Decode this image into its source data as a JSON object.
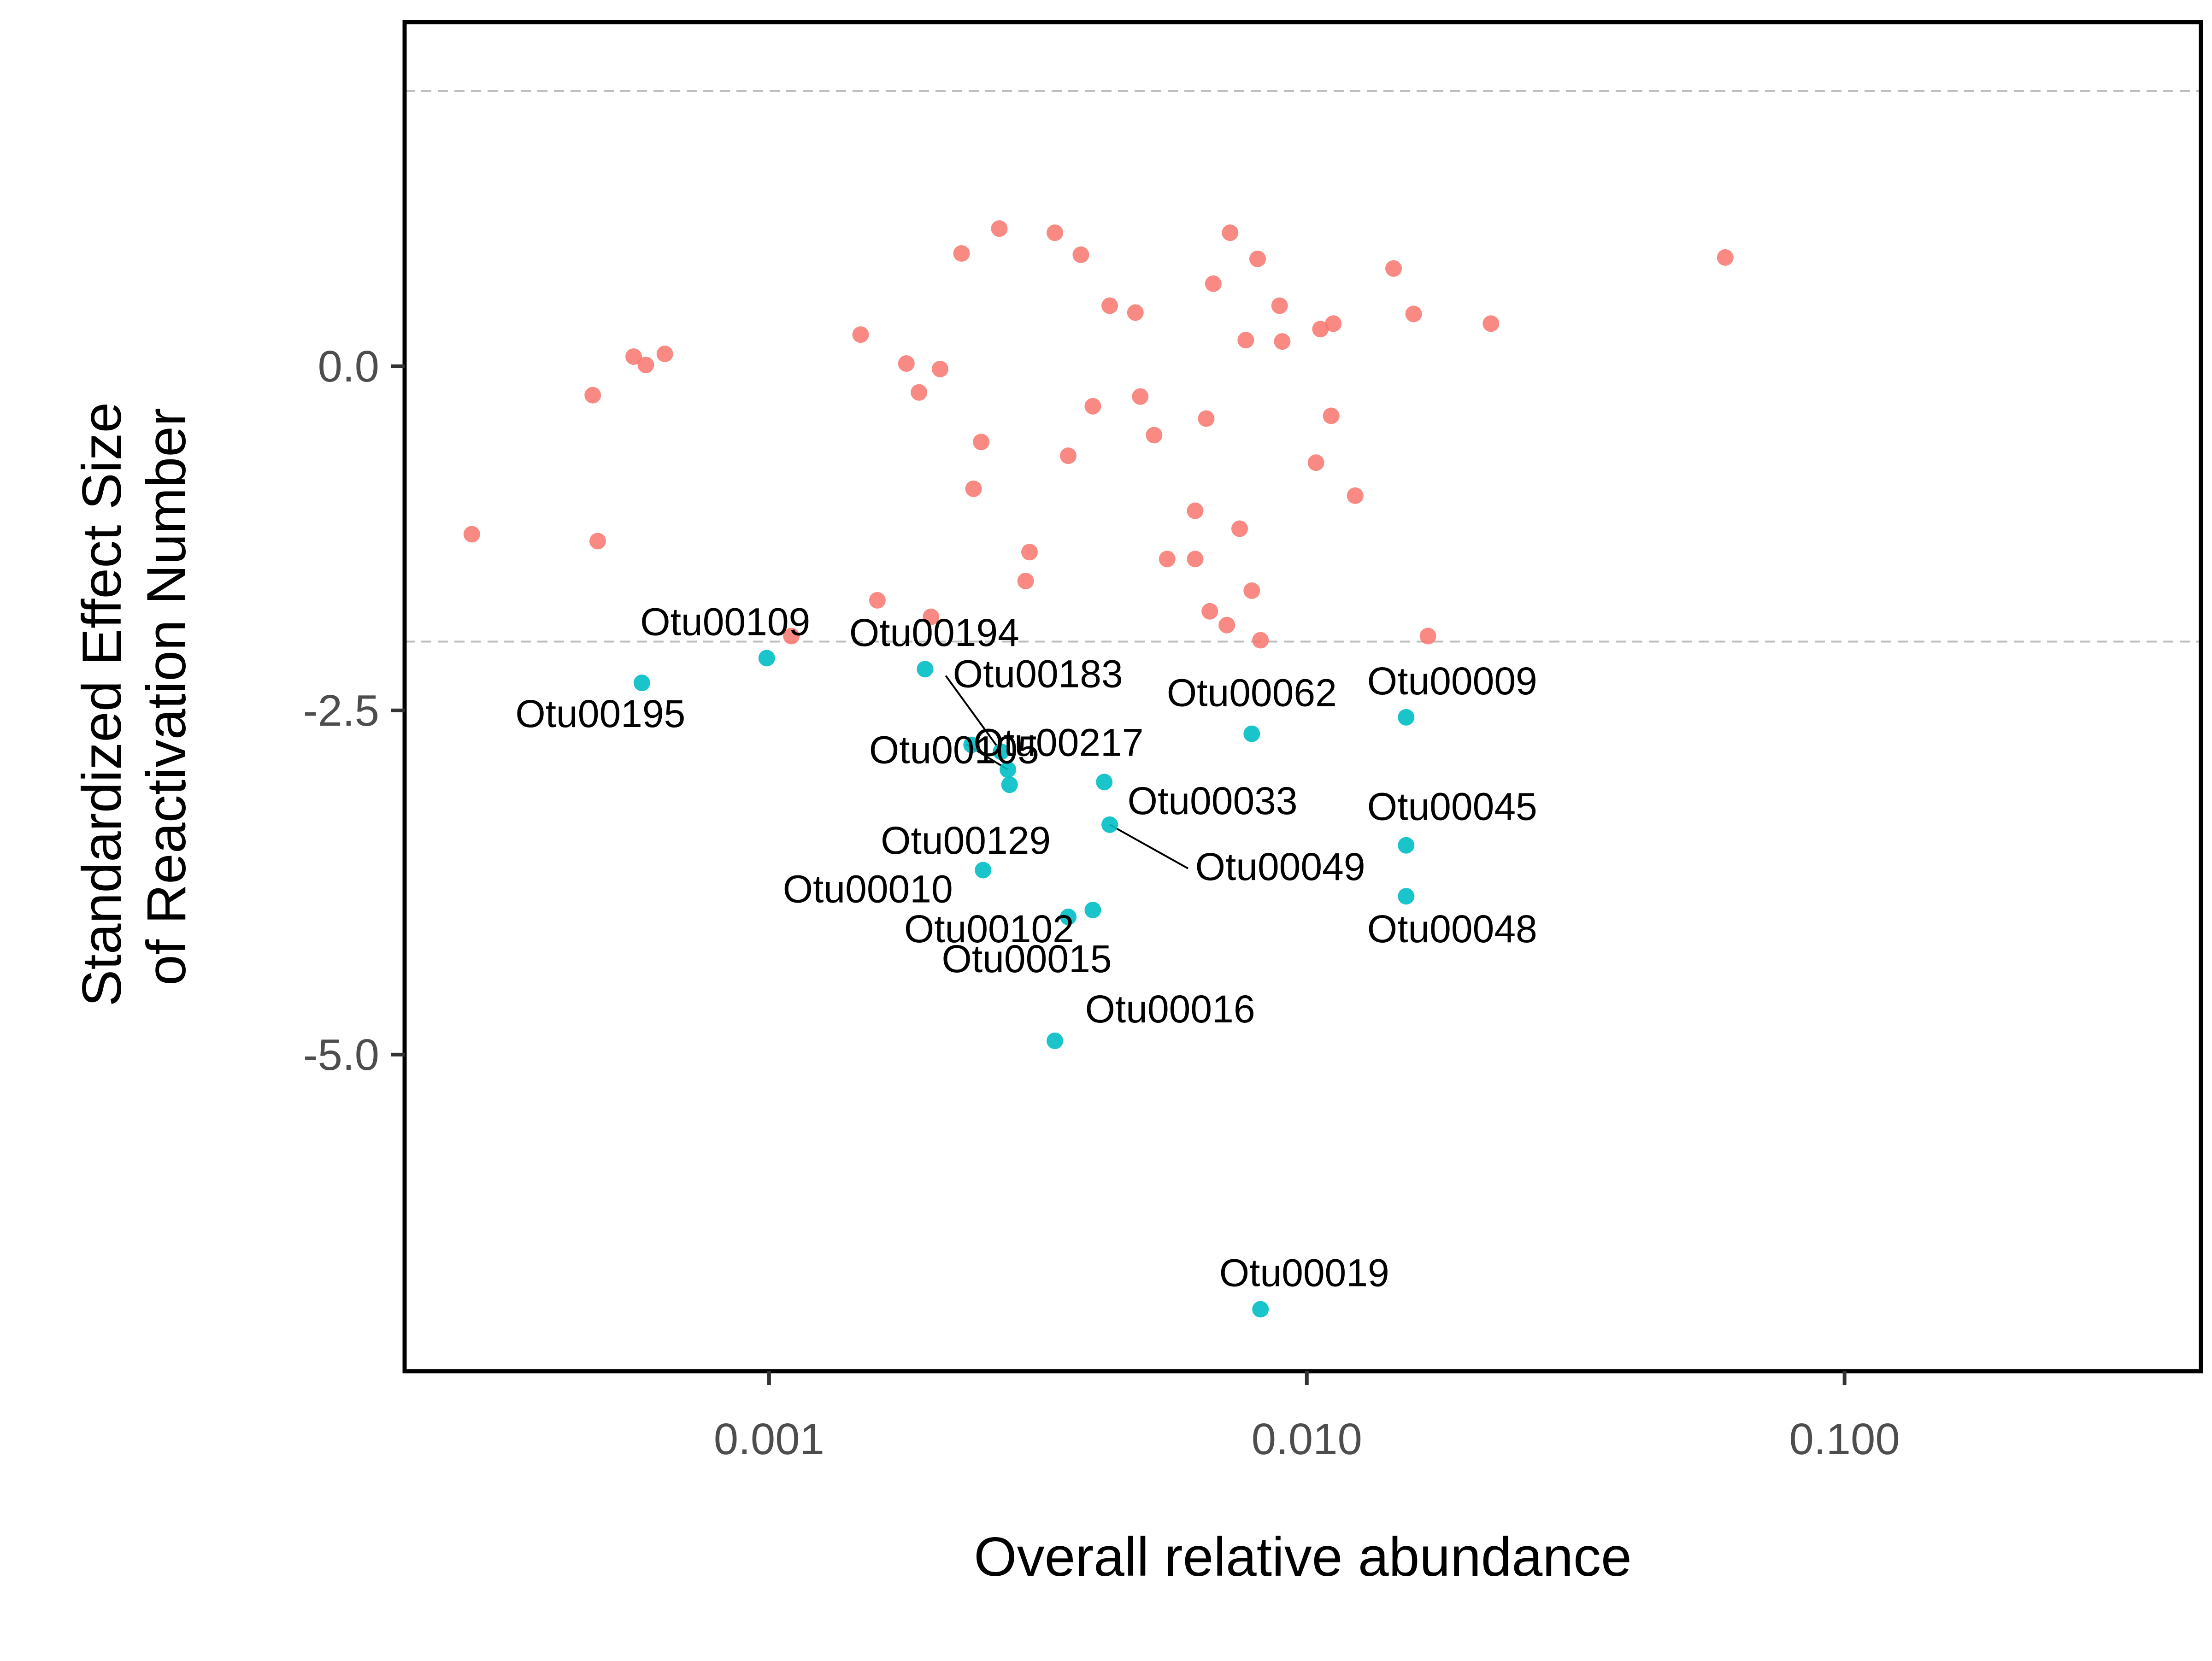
{
  "chart_data": {
    "type": "scatter",
    "title": "",
    "xlabel": "Overall relative abundance",
    "ylabel": [
      "Standardized Effect Size",
      "of Reactivation Number"
    ],
    "x_scale": "log10",
    "xlim": [
      0.00021,
      0.46
    ],
    "ylim": [
      -7.3,
      2.5
    ],
    "xticks": [
      {
        "value": 0.001,
        "label": "0.001"
      },
      {
        "value": 0.01,
        "label": "0.010"
      },
      {
        "value": 0.1,
        "label": "0.100"
      }
    ],
    "yticks": [
      {
        "value": 0.0,
        "label": "0.0"
      },
      {
        "value": -2.5,
        "label": "-2.5"
      },
      {
        "value": -5.0,
        "label": "-5.0"
      }
    ],
    "reference_lines": [
      2.0,
      -2.0
    ],
    "grid": false,
    "legend": "none",
    "colors": {
      "above": "#F8766D",
      "below": "#00BFC4",
      "ref_line": "#bdbdbd",
      "frame": "#000000"
    },
    "series": [
      {
        "group": "above",
        "points": [
          [
            0.00028,
            -1.22
          ],
          [
            0.00047,
            -0.21
          ],
          [
            0.00048,
            -1.27
          ],
          [
            0.00056,
            0.07
          ],
          [
            0.00059,
            0.01
          ],
          [
            0.00064,
            0.09
          ],
          [
            0.0011,
            -1.96
          ],
          [
            0.00148,
            0.23
          ],
          [
            0.00159,
            -1.7
          ],
          [
            0.0018,
            0.02
          ],
          [
            0.0019,
            -0.19
          ],
          [
            0.002,
            -1.82
          ],
          [
            0.00208,
            -0.02
          ],
          [
            0.00228,
            0.82
          ],
          [
            0.0024,
            -0.89
          ],
          [
            0.00248,
            -0.55
          ],
          [
            0.00268,
            1.0
          ],
          [
            0.003,
            -1.56
          ],
          [
            0.00305,
            -1.35
          ],
          [
            0.0034,
            0.97
          ],
          [
            0.0036,
            -0.65
          ],
          [
            0.0038,
            0.81
          ],
          [
            0.004,
            -0.29
          ],
          [
            0.0043,
            0.44
          ],
          [
            0.0048,
            0.39
          ],
          [
            0.0049,
            -0.22
          ],
          [
            0.0052,
            -0.5
          ],
          [
            0.0055,
            -1.4
          ],
          [
            0.0062,
            -1.05
          ],
          [
            0.0062,
            -1.4
          ],
          [
            0.0065,
            -0.38
          ],
          [
            0.0066,
            -1.78
          ],
          [
            0.0067,
            0.6
          ],
          [
            0.0071,
            -1.88
          ],
          [
            0.0072,
            0.97
          ],
          [
            0.0075,
            -1.18
          ],
          [
            0.0077,
            0.19
          ],
          [
            0.0079,
            -1.63
          ],
          [
            0.0081,
            0.78
          ],
          [
            0.0082,
            -1.99
          ],
          [
            0.0089,
            0.44
          ],
          [
            0.009,
            0.18
          ],
          [
            0.0104,
            -0.7
          ],
          [
            0.0106,
            0.27
          ],
          [
            0.0111,
            -0.36
          ],
          [
            0.0112,
            0.31
          ],
          [
            0.0123,
            -0.94
          ],
          [
            0.0145,
            0.71
          ],
          [
            0.0158,
            0.38
          ],
          [
            0.0168,
            -1.96
          ],
          [
            0.022,
            0.31
          ],
          [
            0.06,
            0.79
          ]
        ]
      },
      {
        "group": "below",
        "points": [
          {
            "x": 0.00058,
            "y": -2.3,
            "label": "Otu00195"
          },
          {
            "x": 0.00099,
            "y": -2.12,
            "label": "Otu00109"
          },
          {
            "x": 0.00195,
            "y": -2.2,
            "label": "Otu00194"
          },
          {
            "x": 0.00238,
            "y": -2.75,
            "label": "Otu00105"
          },
          {
            "x": 0.0027,
            "y": -2.8,
            "label": "Otu00183"
          },
          {
            "x": 0.00278,
            "y": -2.93,
            "label": "Otu00217"
          },
          {
            "x": 0.0028,
            "y": -3.04,
            "label": "Otu00129"
          },
          {
            "x": 0.0025,
            "y": -3.66,
            "label": "Otu00010"
          },
          {
            "x": 0.0036,
            "y": -4.0,
            "label": "Otu00015"
          },
          {
            "x": 0.004,
            "y": -3.95,
            "label": "Otu00102"
          },
          {
            "x": 0.0034,
            "y": -4.9,
            "label": "Otu00016"
          },
          {
            "x": 0.0042,
            "y": -3.02,
            "label": "Otu00033"
          },
          {
            "x": 0.0043,
            "y": -3.33,
            "label": "Otu00049"
          },
          {
            "x": 0.0079,
            "y": -2.67,
            "label": "Otu00062"
          },
          {
            "x": 0.0082,
            "y": -6.85,
            "label": "Otu00019"
          },
          {
            "x": 0.0153,
            "y": -2.55,
            "label": "Otu00009"
          },
          {
            "x": 0.0153,
            "y": -3.48,
            "label": "Otu00045"
          },
          {
            "x": 0.0153,
            "y": -3.85,
            "label": "Otu00048"
          }
        ]
      }
    ]
  }
}
